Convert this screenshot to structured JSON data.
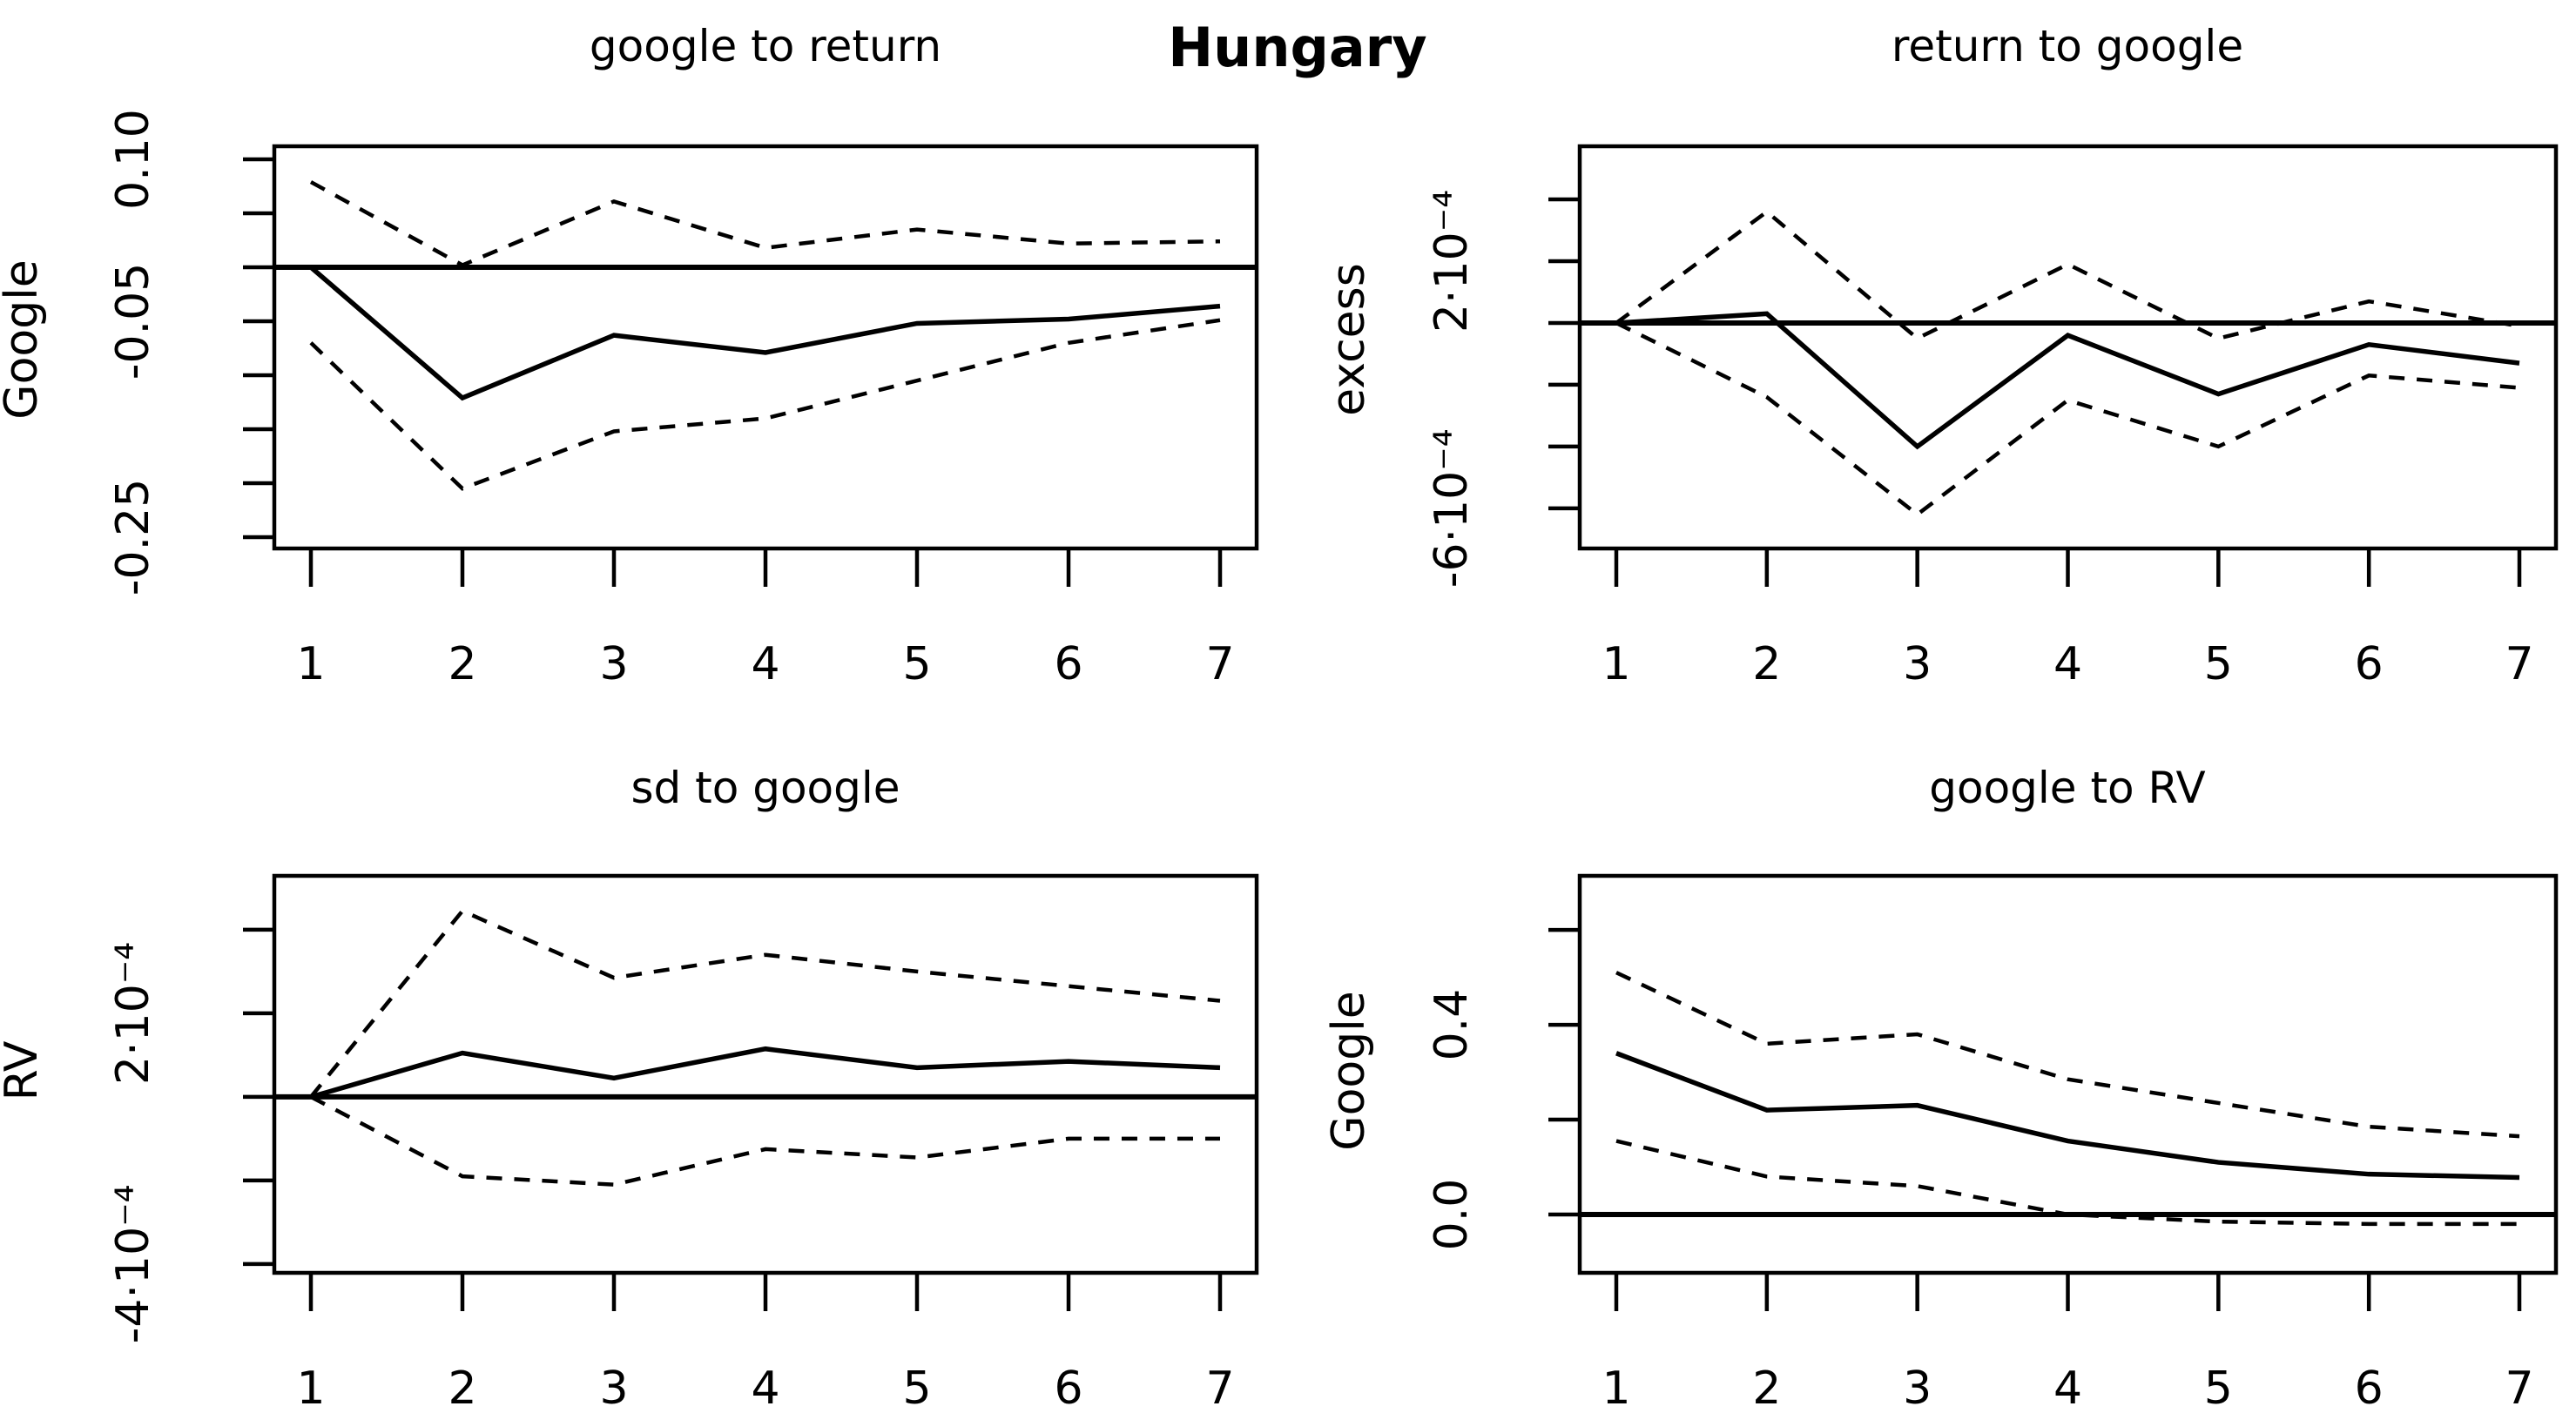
{
  "main_title": "Hungary",
  "figure_type": "impulse-response-grid",
  "chart_data": [
    {
      "type": "line",
      "title": "google to return",
      "ylabel": "Google",
      "x": [
        1,
        2,
        3,
        4,
        5,
        6,
        7
      ],
      "xtick_labels": [
        "1",
        "2",
        "3",
        "4",
        "5",
        "6",
        "7"
      ],
      "series": [
        {
          "name": "irf",
          "line_style": "solid",
          "values": [
            0,
            -0.121,
            -0.063,
            -0.079,
            -0.052,
            -0.048,
            -0.036
          ]
        },
        {
          "name": "ci-upper",
          "line_style": "dashed",
          "values": [
            0.079,
            0.002,
            0.061,
            0.018,
            0.035,
            0.022,
            0.024
          ]
        },
        {
          "name": "ci-lower",
          "line_style": "dashed",
          "values": [
            -0.07,
            -0.205,
            -0.152,
            -0.14,
            -0.105,
            -0.07,
            -0.049
          ]
        }
      ],
      "ylim": [
        -0.2605,
        0.1121
      ],
      "yticks": [
        0.1,
        0.05,
        0,
        -0.05,
        -0.1,
        -0.15,
        -0.2,
        -0.25
      ],
      "ytick_labels": [
        {
          "value": 0.1,
          "label": "0.10"
        },
        {
          "value": -0.05,
          "label": "-0.05"
        },
        {
          "value": -0.25,
          "label": "-0.25"
        }
      ],
      "zero_line": 0,
      "grid": false,
      "legend": false
    },
    {
      "type": "line",
      "title": "return to google",
      "ylabel": "excess",
      "x": [
        1,
        2,
        3,
        4,
        5,
        6,
        7
      ],
      "xtick_labels": [
        "1",
        "2",
        "3",
        "4",
        "5",
        "6",
        "7"
      ],
      "series": [
        {
          "name": "irf",
          "line_style": "solid",
          "values": [
            0,
            3e-05,
            -0.0004,
            -4e-05,
            -0.00023,
            -7e-05,
            -0.00013
          ]
        },
        {
          "name": "ci-upper",
          "line_style": "dashed",
          "values": [
            0,
            0.00036,
            -5e-05,
            0.00019,
            -5e-05,
            7e-05,
            -1e-05
          ]
        },
        {
          "name": "ci-lower",
          "line_style": "dashed",
          "values": [
            0,
            -0.00024,
            -0.00062,
            -0.00025,
            -0.0004,
            -0.00017,
            -0.00021
          ]
        }
      ],
      "ylim": [
        -0.00073,
        0.000572
      ],
      "yticks": [
        0.0004,
        0.0002,
        0,
        -0.0002,
        -0.0004,
        -0.0006
      ],
      "ytick_labels": [
        {
          "value": 0.0002,
          "label": "2·10⁻⁴"
        },
        {
          "value": -0.0006,
          "label": "-6·10⁻⁴"
        }
      ],
      "zero_line": 0,
      "grid": false,
      "legend": false
    },
    {
      "type": "line",
      "title": "sd to google",
      "ylabel": "RV",
      "x": [
        1,
        2,
        3,
        4,
        5,
        6,
        7
      ],
      "xtick_labels": [
        "1",
        "2",
        "3",
        "4",
        "5",
        "6",
        "7"
      ],
      "series": [
        {
          "name": "irf",
          "line_style": "solid",
          "values": [
            0,
            0.000105,
            4.5e-05,
            0.000115,
            7e-05,
            8.5e-05,
            7e-05
          ]
        },
        {
          "name": "ci-upper",
          "line_style": "dashed",
          "values": [
            0,
            0.000445,
            0.000285,
            0.00034,
            0.0003,
            0.000265,
            0.00023
          ]
        },
        {
          "name": "ci-lower",
          "line_style": "dashed",
          "values": [
            0,
            -0.00019,
            -0.00021,
            -0.000125,
            -0.000145,
            -0.0001,
            -0.0001
          ]
        }
      ],
      "ylim": [
        -0.000421,
        0.000529
      ],
      "yticks": [
        0.0004,
        0.0002,
        0,
        -0.0002,
        -0.0004
      ],
      "ytick_labels": [
        {
          "value": 0.0002,
          "label": "2·10⁻⁴"
        },
        {
          "value": -0.0004,
          "label": "-4·10⁻⁴"
        }
      ],
      "zero_line": 0,
      "grid": false,
      "legend": false
    },
    {
      "type": "line",
      "title": "google to RV",
      "ylabel": "Google",
      "x": [
        1,
        2,
        3,
        4,
        5,
        6,
        7
      ],
      "xtick_labels": [
        "1",
        "2",
        "3",
        "4",
        "5",
        "6",
        "7"
      ],
      "series": [
        {
          "name": "irf",
          "line_style": "solid",
          "values": [
            0.34,
            0.22,
            0.23,
            0.155,
            0.11,
            0.085,
            0.078
          ]
        },
        {
          "name": "ci-upper",
          "line_style": "dashed",
          "values": [
            0.51,
            0.36,
            0.38,
            0.285,
            0.235,
            0.185,
            0.165
          ]
        },
        {
          "name": "ci-lower",
          "line_style": "dashed",
          "values": [
            0.155,
            0.08,
            0.06,
            0,
            -0.015,
            -0.02,
            -0.02
          ]
        }
      ],
      "ylim": [
        -0.123,
        0.714
      ],
      "yticks": [
        0.6,
        0.4,
        0.2,
        0
      ],
      "ytick_labels": [
        {
          "value": 0.4,
          "label": "0.4"
        },
        {
          "value": 0,
          "label": "0.0"
        }
      ],
      "zero_line": 0,
      "grid": false,
      "legend": false
    }
  ],
  "colors": {
    "foreground": "#000000",
    "background": "#ffffff"
  }
}
